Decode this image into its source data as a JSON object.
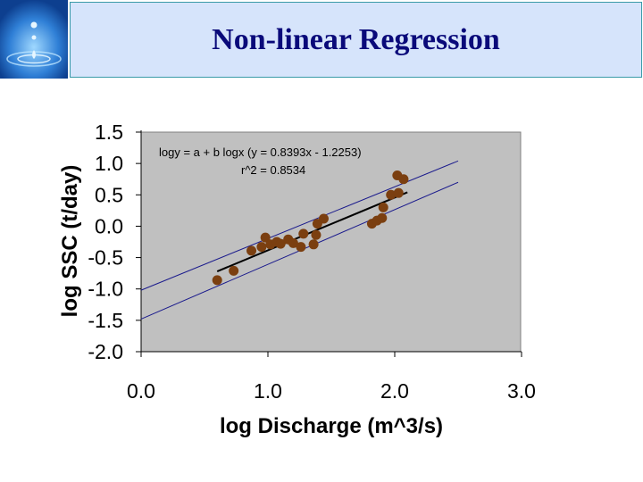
{
  "slide": {
    "title": "Non-linear Regression",
    "logo_icon": "water-drop-icon"
  },
  "colors": {
    "title_text": "#0a0a7a",
    "title_bg": "#d6e4fb",
    "plot_bg": "#c0c0c0",
    "points": "#7b3f10",
    "fit_line": "#000000",
    "bounds": "#1a1a8c"
  },
  "chart_data": {
    "type": "scatter",
    "title": "",
    "xlabel": "log Discharge (m^3/s)",
    "ylabel": "log SSC (t/day)",
    "xlim": [
      0.0,
      3.0
    ],
    "ylim": [
      -2.0,
      1.5
    ],
    "x_ticks": [
      "0.0",
      "1.0",
      "2.0",
      "3.0"
    ],
    "x_tick_values": [
      0,
      1,
      2,
      3
    ],
    "y_ticks": [
      "1.5",
      "1.0",
      "0.5",
      "0.0",
      "-0.5",
      "-1.0",
      "-1.5",
      "-2.0"
    ],
    "y_tick_values": [
      1.5,
      1.0,
      0.5,
      0.0,
      -0.5,
      -1.0,
      -1.5,
      -2.0
    ],
    "annotation_line1": "logy = a + b logx (y = 0.8393x - 1.2253)",
    "annotation_line2": "r^2 = 0.8534",
    "points": [
      {
        "x": 0.6,
        "y": -0.86
      },
      {
        "x": 0.73,
        "y": -0.71
      },
      {
        "x": 0.87,
        "y": -0.39
      },
      {
        "x": 0.95,
        "y": -0.33
      },
      {
        "x": 0.98,
        "y": -0.18
      },
      {
        "x": 1.02,
        "y": -0.29
      },
      {
        "x": 1.07,
        "y": -0.25
      },
      {
        "x": 1.1,
        "y": -0.28
      },
      {
        "x": 1.16,
        "y": -0.21
      },
      {
        "x": 1.2,
        "y": -0.27
      },
      {
        "x": 1.26,
        "y": -0.33
      },
      {
        "x": 1.28,
        "y": -0.12
      },
      {
        "x": 1.36,
        "y": -0.29
      },
      {
        "x": 1.38,
        "y": -0.14
      },
      {
        "x": 1.39,
        "y": 0.04
      },
      {
        "x": 1.44,
        "y": 0.12
      },
      {
        "x": 1.82,
        "y": 0.04
      },
      {
        "x": 1.86,
        "y": 0.09
      },
      {
        "x": 1.9,
        "y": 0.13
      },
      {
        "x": 1.91,
        "y": 0.3
      },
      {
        "x": 1.97,
        "y": 0.5
      },
      {
        "x": 2.02,
        "y": 0.81
      },
      {
        "x": 2.03,
        "y": 0.53
      },
      {
        "x": 2.07,
        "y": 0.75
      }
    ],
    "fit_line": {
      "x": [
        0.6,
        2.1
      ],
      "y": [
        -0.72,
        0.54
      ]
    },
    "upper_bound": {
      "x": [
        0.0,
        2.5
      ],
      "y": [
        -1.02,
        1.04
      ]
    },
    "lower_bound": {
      "x": [
        0.0,
        2.5
      ],
      "y": [
        -1.48,
        0.7
      ]
    }
  }
}
